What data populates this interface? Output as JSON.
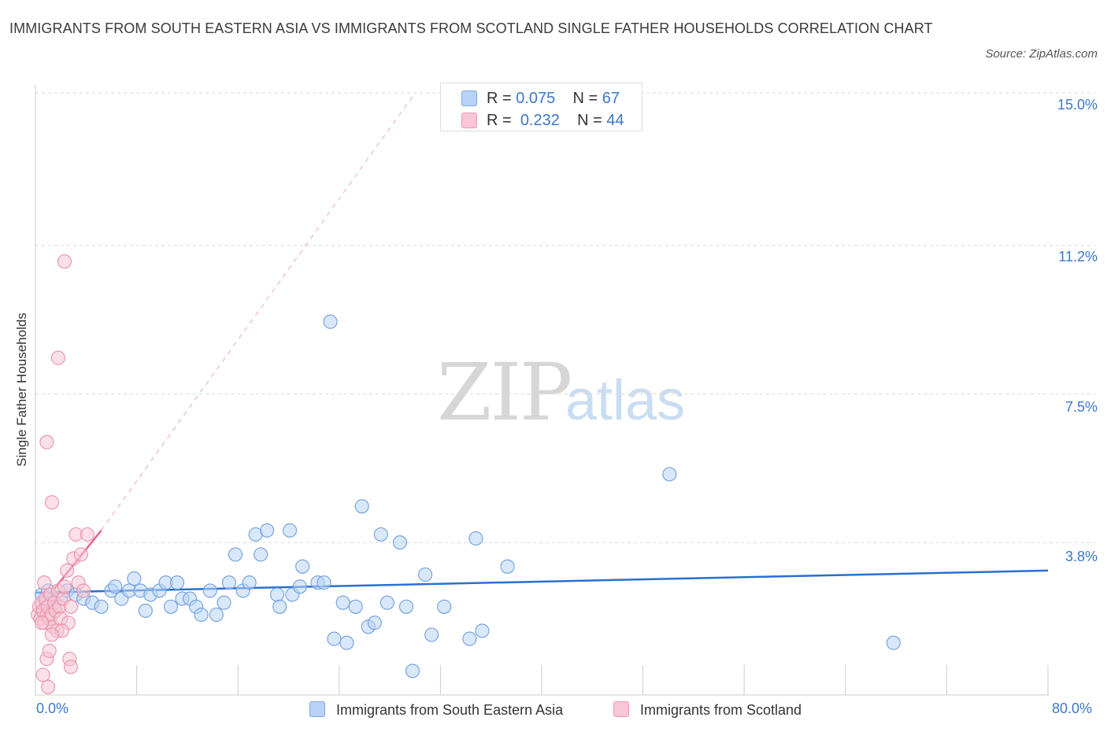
{
  "title": "IMMIGRANTS FROM SOUTH EASTERN ASIA VS IMMIGRANTS FROM SCOTLAND SINGLE FATHER HOUSEHOLDS CORRELATION CHART",
  "source": "Source: ZipAtlas.com",
  "watermark": {
    "zip": "ZIP",
    "atlas": "atlas"
  },
  "legend_top": [
    {
      "r_label": "R = ",
      "r_value": "0.075",
      "n_label": "N = ",
      "n_value": "67",
      "color": "#b8d3f5",
      "stroke": "#7aa7e0"
    },
    {
      "r_label": "R = ",
      "r_value": "0.232",
      "n_label": "N = ",
      "n_value": "44",
      "color": "#f8c6d4",
      "stroke": "#e89ab2"
    }
  ],
  "legend_bottom": [
    {
      "label": "Immigrants from South Eastern Asia",
      "color": "#b8d3f5",
      "stroke": "#7aa7e0"
    },
    {
      "label": "Immigrants from Scotland",
      "color": "#f8c6d4",
      "stroke": "#e89ab2"
    }
  ],
  "colors": {
    "blue_fill": "#b8d3f5",
    "blue_stroke": "#6f9fdc",
    "blue_line": "#2a6fcf",
    "pink_fill": "#f8c6d4",
    "pink_stroke": "#e891ab",
    "pink_line": "#e8638c",
    "grid": "#d9d9d9",
    "axis_text": "#3d77c9"
  },
  "chart_data": {
    "type": "scatter",
    "title": "IMMIGRANTS FROM SOUTH EASTERN ASIA VS IMMIGRANTS FROM SCOTLAND SINGLE FATHER HOUSEHOLDS CORRELATION CHART",
    "xlabel": "",
    "ylabel": "Single Father Households",
    "xlim": [
      0,
      80
    ],
    "ylim": [
      0,
      15
    ],
    "x_tick_labels": [
      "0.0%",
      "80.0%"
    ],
    "y_ticks": [
      3.8,
      7.5,
      11.2,
      15.0
    ],
    "y_tick_labels": [
      "3.8%",
      "7.5%",
      "11.2%",
      "15.0%"
    ],
    "grid": true,
    "legend_position": "top-center",
    "series": [
      {
        "name": "Immigrants from South Eastern Asia",
        "R": 0.075,
        "N": 67,
        "trend": {
          "x": [
            0,
            80
          ],
          "y": [
            2.55,
            3.1
          ],
          "dashed_extension": false
        },
        "points": [
          [
            0.5,
            2.5
          ],
          [
            0.8,
            2.3
          ],
          [
            1.2,
            2.5
          ],
          [
            1.5,
            2.2
          ],
          [
            2.0,
            2.4
          ],
          [
            2.5,
            2.6
          ],
          [
            3.2,
            2.5
          ],
          [
            3.8,
            2.4
          ],
          [
            4.5,
            2.3
          ],
          [
            5.2,
            2.2
          ],
          [
            6.0,
            2.6
          ],
          [
            6.3,
            2.7
          ],
          [
            6.8,
            2.4
          ],
          [
            7.4,
            2.6
          ],
          [
            7.8,
            2.9
          ],
          [
            8.3,
            2.6
          ],
          [
            8.7,
            2.1
          ],
          [
            9.1,
            2.5
          ],
          [
            9.8,
            2.6
          ],
          [
            10.3,
            2.8
          ],
          [
            10.7,
            2.2
          ],
          [
            11.2,
            2.8
          ],
          [
            11.6,
            2.4
          ],
          [
            12.2,
            2.4
          ],
          [
            12.7,
            2.2
          ],
          [
            13.1,
            2.0
          ],
          [
            13.8,
            2.6
          ],
          [
            14.3,
            2.0
          ],
          [
            14.9,
            2.3
          ],
          [
            15.3,
            2.8
          ],
          [
            15.8,
            3.5
          ],
          [
            16.4,
            2.6
          ],
          [
            16.9,
            2.8
          ],
          [
            17.4,
            4.0
          ],
          [
            17.8,
            3.5
          ],
          [
            18.3,
            4.1
          ],
          [
            19.1,
            2.5
          ],
          [
            19.3,
            2.2
          ],
          [
            20.1,
            4.1
          ],
          [
            20.3,
            2.5
          ],
          [
            20.9,
            2.7
          ],
          [
            21.1,
            3.2
          ],
          [
            22.3,
            2.8
          ],
          [
            22.8,
            2.8
          ],
          [
            23.3,
            9.3
          ],
          [
            23.6,
            1.4
          ],
          [
            24.3,
            2.3
          ],
          [
            24.6,
            1.3
          ],
          [
            25.3,
            2.2
          ],
          [
            25.8,
            4.7
          ],
          [
            26.3,
            1.7
          ],
          [
            26.8,
            1.8
          ],
          [
            27.3,
            4.0
          ],
          [
            27.8,
            2.3
          ],
          [
            28.8,
            3.8
          ],
          [
            29.3,
            2.2
          ],
          [
            29.8,
            0.6
          ],
          [
            30.8,
            3.0
          ],
          [
            31.3,
            1.5
          ],
          [
            32.3,
            2.2
          ],
          [
            34.3,
            1.4
          ],
          [
            34.8,
            3.9
          ],
          [
            35.3,
            1.6
          ],
          [
            37.3,
            3.2
          ],
          [
            50.1,
            5.5
          ],
          [
            67.8,
            1.3
          ],
          [
            1.0,
            2.6
          ]
        ]
      },
      {
        "name": "Immigrants from Scotland",
        "R": 0.232,
        "N": 44,
        "trend": {
          "x": [
            0.1,
            5.2
          ],
          "y": [
            2.1,
            4.1
          ],
          "dashed_extension": true,
          "dashed_to": [
            30,
            15.0
          ]
        },
        "points": [
          [
            0.2,
            2.0
          ],
          [
            0.3,
            2.2
          ],
          [
            0.4,
            1.9
          ],
          [
            0.5,
            2.3
          ],
          [
            0.6,
            2.1
          ],
          [
            0.7,
            1.8
          ],
          [
            0.8,
            2.4
          ],
          [
            0.9,
            2.0
          ],
          [
            1.0,
            2.2
          ],
          [
            1.1,
            1.9
          ],
          [
            1.2,
            2.5
          ],
          [
            1.3,
            2.0
          ],
          [
            1.4,
            1.7
          ],
          [
            1.5,
            2.3
          ],
          [
            1.6,
            2.1
          ],
          [
            1.7,
            1.6
          ],
          [
            1.8,
            2.6
          ],
          [
            1.9,
            2.2
          ],
          [
            2.0,
            1.9
          ],
          [
            2.2,
            2.4
          ],
          [
            2.3,
            2.7
          ],
          [
            2.5,
            3.1
          ],
          [
            2.6,
            1.8
          ],
          [
            2.8,
            2.2
          ],
          [
            3.0,
            3.4
          ],
          [
            3.2,
            4.0
          ],
          [
            3.4,
            2.8
          ],
          [
            3.6,
            3.5
          ],
          [
            3.8,
            2.6
          ],
          [
            4.1,
            4.0
          ],
          [
            0.9,
            6.3
          ],
          [
            1.3,
            4.8
          ],
          [
            1.8,
            8.4
          ],
          [
            2.3,
            10.8
          ],
          [
            0.6,
            0.5
          ],
          [
            1.0,
            0.2
          ],
          [
            2.1,
            1.6
          ],
          [
            2.7,
            0.9
          ],
          [
            2.8,
            0.7
          ],
          [
            0.9,
            0.9
          ],
          [
            1.1,
            1.1
          ],
          [
            0.5,
            1.8
          ],
          [
            1.3,
            1.5
          ],
          [
            0.7,
            2.8
          ]
        ]
      }
    ]
  }
}
